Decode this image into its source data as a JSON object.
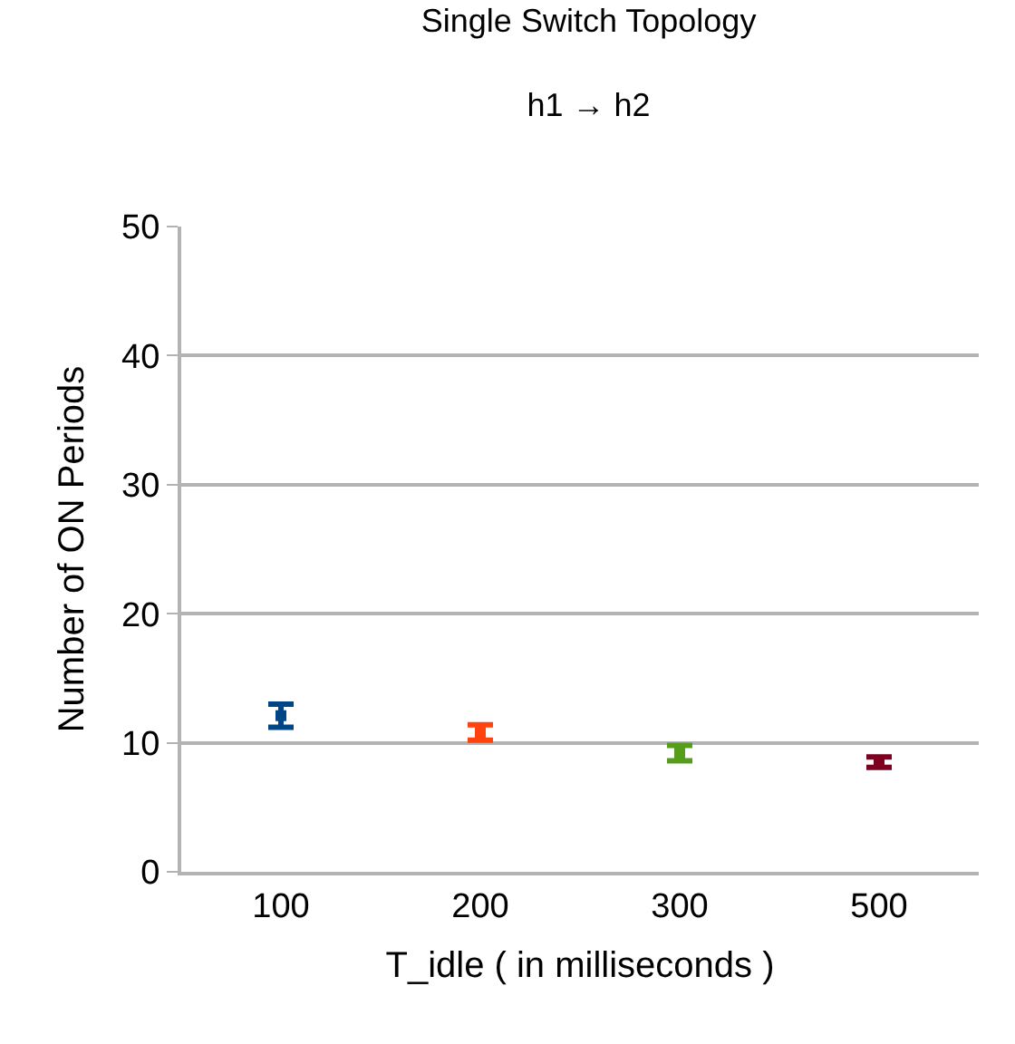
{
  "chart_data": {
    "type": "scatter",
    "title": "Single Switch Topology",
    "subtitle": "h1 → h2",
    "xlabel": "T_idle ( in milliseconds )",
    "ylabel": "Number of ON Periods",
    "categories": [
      "100",
      "200",
      "300",
      "500"
    ],
    "values": [
      12.1,
      10.8,
      9.2,
      8.5
    ],
    "errors": [
      0.9,
      0.6,
      0.6,
      0.4
    ],
    "colors": [
      "#004586",
      "#ff420e",
      "#579d1c",
      "#7e0021"
    ],
    "ylim": [
      0,
      50
    ],
    "yticks": [
      0,
      10,
      20,
      30,
      40,
      50
    ],
    "grid": "y",
    "marker": "square"
  }
}
